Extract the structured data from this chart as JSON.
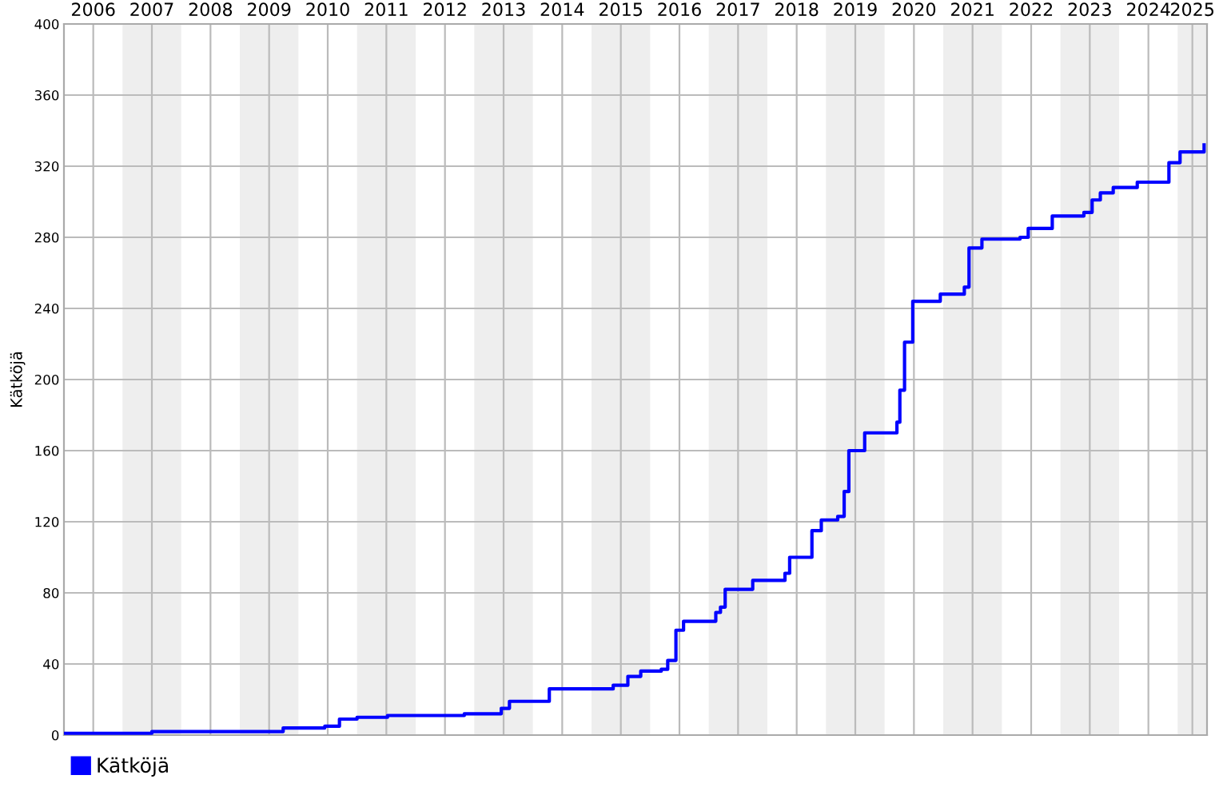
{
  "chart_data": {
    "type": "step",
    "ylabel": "Kätköjä",
    "xlim": [
      2006,
      2025.5
    ],
    "ylim": [
      0,
      400
    ],
    "yticks": [
      0,
      40,
      80,
      120,
      160,
      200,
      240,
      280,
      320,
      360,
      400
    ],
    "xticks": [
      {
        "value": 2006.5,
        "label": "2006"
      },
      {
        "value": 2007.5,
        "label": "2007"
      },
      {
        "value": 2008.5,
        "label": "2008"
      },
      {
        "value": 2009.5,
        "label": "2009"
      },
      {
        "value": 2010.5,
        "label": "2010"
      },
      {
        "value": 2011.5,
        "label": "2011"
      },
      {
        "value": 2012.5,
        "label": "2012"
      },
      {
        "value": 2013.5,
        "label": "2013"
      },
      {
        "value": 2014.5,
        "label": "2014"
      },
      {
        "value": 2015.5,
        "label": "2015"
      },
      {
        "value": 2016.5,
        "label": "2016"
      },
      {
        "value": 2017.5,
        "label": "2017"
      },
      {
        "value": 2018.5,
        "label": "2018"
      },
      {
        "value": 2019.5,
        "label": "2019"
      },
      {
        "value": 2020.5,
        "label": "2020"
      },
      {
        "value": 2021.5,
        "label": "2021"
      },
      {
        "value": 2022.5,
        "label": "2022"
      },
      {
        "value": 2023.5,
        "label": "2023"
      },
      {
        "value": 2024.5,
        "label": "2024"
      },
      {
        "value": 2025.25,
        "label": "2025"
      }
    ],
    "grid": true,
    "legend": "bottom left",
    "marker": "none",
    "line_style": "solid",
    "bands": [
      {
        "axis": "x",
        "from": 2007,
        "to": 2008,
        "color": "#eeeeee"
      },
      {
        "axis": "x",
        "from": 2009,
        "to": 2010,
        "color": "#eeeeee"
      },
      {
        "axis": "x",
        "from": 2011,
        "to": 2012,
        "color": "#eeeeee"
      },
      {
        "axis": "x",
        "from": 2013,
        "to": 2014,
        "color": "#eeeeee"
      },
      {
        "axis": "x",
        "from": 2015,
        "to": 2016,
        "color": "#eeeeee"
      },
      {
        "axis": "x",
        "from": 2017,
        "to": 2018,
        "color": "#eeeeee"
      },
      {
        "axis": "x",
        "from": 2019,
        "to": 2020,
        "color": "#eeeeee"
      },
      {
        "axis": "x",
        "from": 2021,
        "to": 2022,
        "color": "#eeeeee"
      },
      {
        "axis": "x",
        "from": 2023,
        "to": 2024,
        "color": "#eeeeee"
      },
      {
        "axis": "x",
        "from": 2025,
        "to": 2025.5,
        "color": "#eeeeee"
      }
    ],
    "series": [
      {
        "name": "Kätköjä",
        "color": "#0000ff",
        "x": [
          2006.0,
          2007.5,
          2009.74,
          2010.45,
          2010.7,
          2011.0,
          2011.52,
          2012.83,
          2013.46,
          2013.6,
          2014.28,
          2015.37,
          2015.62,
          2015.84,
          2016.19,
          2016.3,
          2016.44,
          2016.57,
          2017.12,
          2017.2,
          2017.28,
          2017.75,
          2018.3,
          2018.38,
          2018.76,
          2018.92,
          2019.2,
          2019.31,
          2019.39,
          2019.66,
          2020.21,
          2020.26,
          2020.34,
          2020.48,
          2020.95,
          2021.36,
          2021.44,
          2021.66,
          2022.31,
          2022.45,
          2022.86,
          2023.4,
          2023.54,
          2023.68,
          2023.9,
          2024.31,
          2024.66,
          2024.85,
          2025.04,
          2025.45
        ],
        "values": [
          1,
          2,
          4,
          5,
          9,
          10,
          11,
          12,
          15,
          19,
          26,
          28,
          33,
          36,
          37,
          42,
          59,
          64,
          69,
          72,
          82,
          87,
          91,
          100,
          115,
          121,
          123,
          137,
          160,
          170,
          176,
          194,
          221,
          244,
          248,
          252,
          274,
          279,
          280,
          285,
          292,
          294,
          301,
          305,
          308,
          311,
          311,
          322,
          328,
          332
        ]
      }
    ]
  }
}
